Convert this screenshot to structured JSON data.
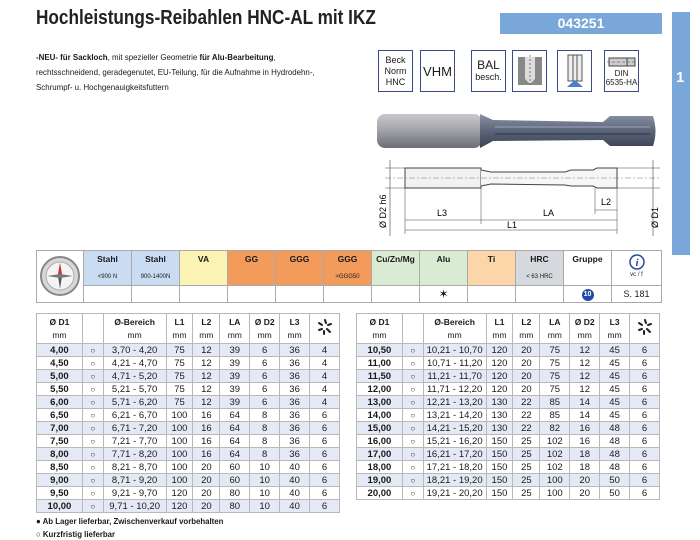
{
  "header": {
    "title": "Hochleistungs-Reibahlen HNC-AL mit IKZ",
    "article_no": "043251",
    "chapter": "1"
  },
  "description": {
    "l1_b1": "-NEU- für Sackloch",
    "l1_t1": ", mit spezieller Geometrie ",
    "l1_b2": "für Alu-Bearbeitung",
    "l1_t2": ",",
    "line2": "rechtsschneidend, geradegenutet, EU-Teilung, für die Aufnahme in Hydrodehn-,",
    "line3": "Schrumpf- u. Hochgenauigkeitsfuttern"
  },
  "badges": {
    "beck": [
      "Beck",
      "Norm",
      "HNC"
    ],
    "vhm": "VHM",
    "bal": [
      "BAL",
      "besch."
    ],
    "din": [
      "DIN",
      "6535-HA"
    ]
  },
  "drawing": {
    "d2": "Ø D2 h6",
    "d1": "Ø D1",
    "l3": "L3",
    "la": "LA",
    "l2": "L2",
    "l1": "L1"
  },
  "materials": {
    "columns": [
      {
        "label": "Stahl",
        "sub": "<900 N",
        "color": "#c9dcf2",
        "mark": ""
      },
      {
        "label": "Stahl",
        "sub": "900-1400N",
        "color": "#c9dcf2",
        "mark": ""
      },
      {
        "label": "VA",
        "sub": "",
        "color": "#fbf3b3",
        "mark": ""
      },
      {
        "label": "GG",
        "sub": "",
        "color": "#f29b5a",
        "mark": ""
      },
      {
        "label": "GGG",
        "sub": "",
        "color": "#f29b5a",
        "mark": ""
      },
      {
        "label": "GGG",
        "sub": ">GGG50",
        "color": "#f29b5a",
        "mark": ""
      },
      {
        "label": "Cu/Zn/Mg",
        "sub": "",
        "color": "#d9ebd2",
        "mark": ""
      },
      {
        "label": "Alu",
        "sub": "",
        "color": "#d9ebd2",
        "mark": "✶"
      },
      {
        "label": "Ti",
        "sub": "",
        "color": "#fcd5a8",
        "mark": ""
      },
      {
        "label": "HRC",
        "sub": "< 63 HRC",
        "color": "#d5d8dc",
        "mark": ""
      }
    ],
    "gruppe_label": "Gruppe",
    "gruppe_value": "10",
    "info_sub": "vc / f",
    "info_value": "S. 181"
  },
  "table_headers": {
    "d1": "Ø D1",
    "mm": "mm",
    "bereich": "Ø-Bereich",
    "l1": "L1",
    "l2": "L2",
    "la": "LA",
    "d2": "Ø D2",
    "l3": "L3"
  },
  "rows_left": [
    [
      "4,00",
      "○",
      "3,70 - 4,20",
      "75",
      "12",
      "39",
      "6",
      "36",
      "4"
    ],
    [
      "4,50",
      "○",
      "4,21 - 4,70",
      "75",
      "12",
      "39",
      "6",
      "36",
      "4"
    ],
    [
      "5,00",
      "○",
      "4,71 - 5,20",
      "75",
      "12",
      "39",
      "6",
      "36",
      "4"
    ],
    [
      "5,50",
      "○",
      "5,21 - 5,70",
      "75",
      "12",
      "39",
      "6",
      "36",
      "4"
    ],
    [
      "6,00",
      "○",
      "5,71 - 6,20",
      "75",
      "12",
      "39",
      "6",
      "36",
      "4"
    ],
    [
      "6,50",
      "○",
      "6,21 - 6,70",
      "100",
      "16",
      "64",
      "8",
      "36",
      "6"
    ],
    [
      "7,00",
      "○",
      "6,71 - 7,20",
      "100",
      "16",
      "64",
      "8",
      "36",
      "6"
    ],
    [
      "7,50",
      "○",
      "7,21 - 7,70",
      "100",
      "16",
      "64",
      "8",
      "36",
      "6"
    ],
    [
      "8,00",
      "○",
      "7,71 - 8,20",
      "100",
      "16",
      "64",
      "8",
      "36",
      "6"
    ],
    [
      "8,50",
      "○",
      "8,21 - 8,70",
      "100",
      "20",
      "60",
      "10",
      "40",
      "6"
    ],
    [
      "9,00",
      "○",
      "8,71 - 9,20",
      "100",
      "20",
      "60",
      "10",
      "40",
      "6"
    ],
    [
      "9,50",
      "○",
      "9,21 - 9,70",
      "120",
      "20",
      "80",
      "10",
      "40",
      "6"
    ],
    [
      "10,00",
      "○",
      "9,71 - 10,20",
      "120",
      "20",
      "80",
      "10",
      "40",
      "6"
    ]
  ],
  "rows_right": [
    [
      "10,50",
      "○",
      "10,21 - 10,70",
      "120",
      "20",
      "75",
      "12",
      "45",
      "6"
    ],
    [
      "11,00",
      "○",
      "10,71 - 11,20",
      "120",
      "20",
      "75",
      "12",
      "45",
      "6"
    ],
    [
      "11,50",
      "○",
      "11,21 - 11,70",
      "120",
      "20",
      "75",
      "12",
      "45",
      "6"
    ],
    [
      "12,00",
      "○",
      "11,71 - 12,20",
      "120",
      "20",
      "75",
      "12",
      "45",
      "6"
    ],
    [
      "13,00",
      "○",
      "12,21 - 13,20",
      "130",
      "22",
      "85",
      "14",
      "45",
      "6"
    ],
    [
      "14,00",
      "○",
      "13,21 - 14,20",
      "130",
      "22",
      "85",
      "14",
      "45",
      "6"
    ],
    [
      "15,00",
      "○",
      "14,21 - 15,20",
      "130",
      "22",
      "82",
      "16",
      "48",
      "6"
    ],
    [
      "16,00",
      "○",
      "15,21 - 16,20",
      "150",
      "25",
      "102",
      "16",
      "48",
      "6"
    ],
    [
      "17,00",
      "○",
      "16,21 - 17,20",
      "150",
      "25",
      "102",
      "18",
      "48",
      "6"
    ],
    [
      "18,00",
      "○",
      "17,21 - 18,20",
      "150",
      "25",
      "102",
      "18",
      "48",
      "6"
    ],
    [
      "19,00",
      "○",
      "18,21 - 19,20",
      "150",
      "25",
      "100",
      "20",
      "50",
      "6"
    ],
    [
      "20,00",
      "○",
      "19,21 - 20,20",
      "150",
      "25",
      "100",
      "20",
      "50",
      "6"
    ]
  ],
  "footnotes": [
    "● Ab Lager lieferbar, Zwischenverkauf vorbehalten",
    "○ Kurzfristig lieferbar"
  ]
}
